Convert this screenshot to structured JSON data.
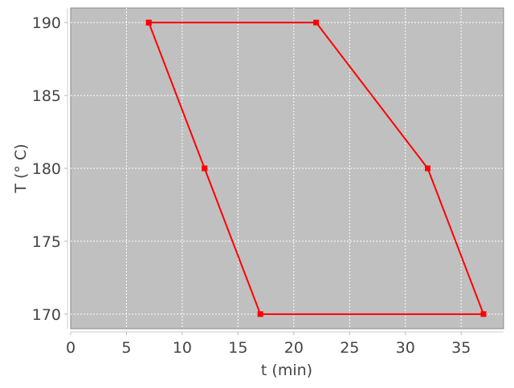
{
  "chart_data": {
    "type": "line",
    "title": "",
    "xlabel": "t (min)",
    "ylabel": "T (° C)",
    "xlim": [
      0,
      38.8
    ],
    "ylim": [
      169,
      191
    ],
    "xticks": [
      0,
      5,
      10,
      15,
      20,
      25,
      30,
      35
    ],
    "yticks": [
      170,
      175,
      180,
      185,
      190
    ],
    "grid": true,
    "series": [
      {
        "color": "#ff0000",
        "marker": "square",
        "x": [
          7,
          22,
          32,
          37,
          17,
          12,
          7
        ],
        "y": [
          190,
          190,
          180,
          170,
          170,
          180,
          190
        ]
      }
    ],
    "colors": {
      "plot_background": "#c0c0c0",
      "grid": "#ffffff",
      "line": "#ff0000"
    }
  }
}
